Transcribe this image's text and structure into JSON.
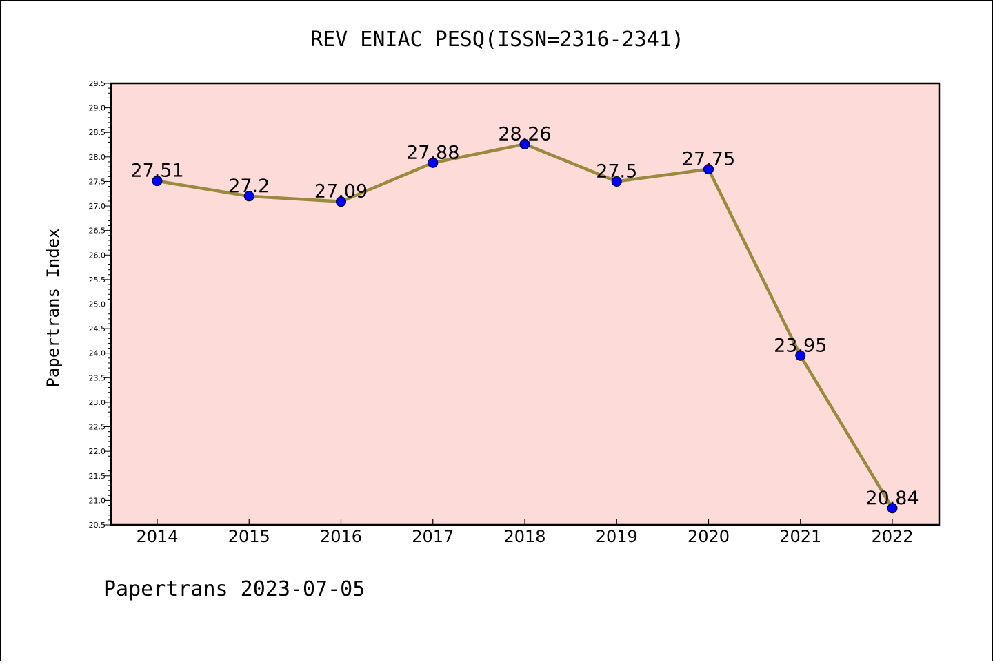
{
  "chart_data": {
    "type": "line",
    "title": "REV ENIAC PESQ(ISSN=2316-2341)",
    "ylabel": "Papertrans Index",
    "xlabel": "",
    "footer": "Papertrans 2023-07-05",
    "categories": [
      "2014",
      "2015",
      "2016",
      "2017",
      "2018",
      "2019",
      "2020",
      "2021",
      "2022"
    ],
    "values": [
      27.51,
      27.2,
      27.09,
      27.88,
      28.26,
      27.5,
      27.75,
      23.95,
      20.84
    ],
    "data_labels": [
      "27.51",
      "27.2",
      "27.09",
      "27.88",
      "28.26",
      "27.5",
      "27.75",
      "23.95",
      "20.84"
    ],
    "ylim": [
      20.5,
      29.5
    ],
    "yticks": [
      "20.5",
      "21.0",
      "21.5",
      "22.0",
      "22.5",
      "23.0",
      "23.5",
      "24.0",
      "24.5",
      "25.0",
      "25.5",
      "26.0",
      "26.5",
      "27.0",
      "27.5",
      "28.0",
      "28.5",
      "29.0",
      "29.5"
    ],
    "grid": false,
    "colors": {
      "plot_background": "#fddbd9",
      "line": "#9a8a3e",
      "marker": "#0000ff"
    }
  }
}
